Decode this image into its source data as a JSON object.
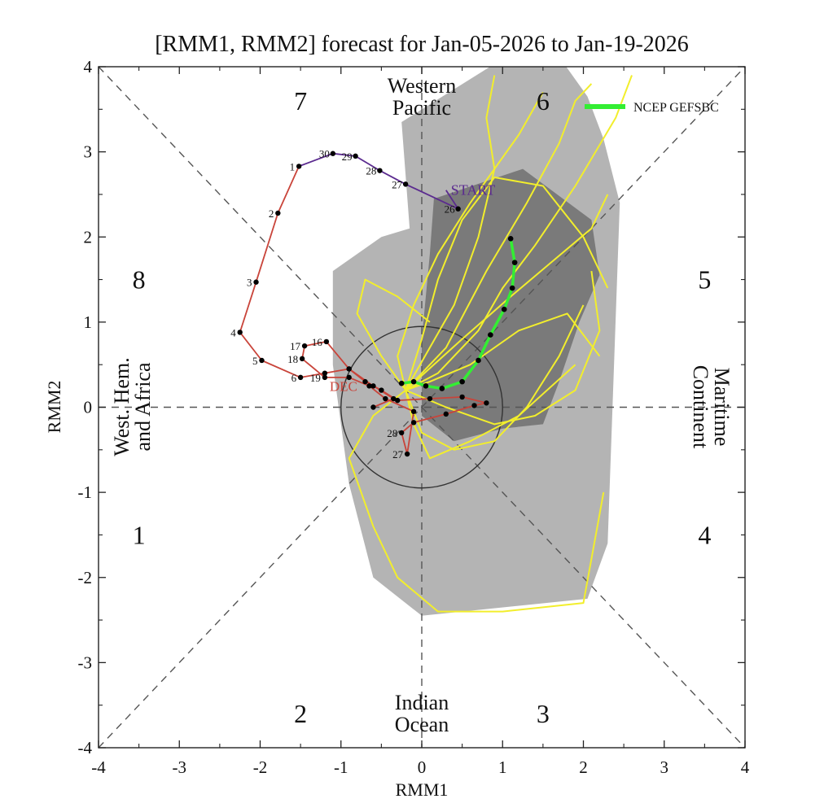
{
  "chart_data": {
    "type": "scatter",
    "title": "[RMM1, RMM2] forecast for Jan-05-2026 to Jan-19-2026",
    "xlabel": "RMM1",
    "ylabel": "RMM2",
    "xlim": [
      -4,
      4
    ],
    "ylim": [
      -4,
      4
    ],
    "x_ticks": [
      "-4",
      "-3",
      "-2",
      "-1",
      "0",
      "1",
      "2",
      "3",
      "4"
    ],
    "y_ticks": [
      "-4",
      "-3",
      "-2",
      "-1",
      "0",
      "1",
      "2",
      "3",
      "4"
    ],
    "phase_labels": [
      {
        "label": "1",
        "x": -3.5,
        "y": -1.5
      },
      {
        "label": "2",
        "x": -1.5,
        "y": -3.6
      },
      {
        "label": "3",
        "x": 1.5,
        "y": -3.6
      },
      {
        "label": "4",
        "x": 3.5,
        "y": -1.5
      },
      {
        "label": "5",
        "x": 3.5,
        "y": 1.5
      },
      {
        "label": "6",
        "x": 1.5,
        "y": 3.6
      },
      {
        "label": "7",
        "x": -1.5,
        "y": 3.6
      },
      {
        "label": "8",
        "x": -3.5,
        "y": 1.5
      }
    ],
    "regions": {
      "top": [
        "Western",
        "Pacific"
      ],
      "bottom": [
        "Indian",
        "Ocean"
      ],
      "left": [
        "West. Hem.",
        "and Africa"
      ],
      "right": [
        "Maritime",
        "Continent"
      ]
    },
    "legend": [
      {
        "name": "NCEP GEFSBC",
        "color": "#33ee33",
        "position": "top-right"
      }
    ],
    "grid": false,
    "observed_nov": {
      "color": "#5b2b8f",
      "points": [
        {
          "label": "START",
          "x": 0.3,
          "y": 2.55
        },
        {
          "label": "26",
          "x": 0.45,
          "y": 2.33
        },
        {
          "label": "27",
          "x": -0.2,
          "y": 2.62
        },
        {
          "label": "28",
          "x": -0.52,
          "y": 2.78
        },
        {
          "label": "29",
          "x": -0.82,
          "y": 2.95
        },
        {
          "label": "30",
          "x": -1.1,
          "y": 2.98
        }
      ]
    },
    "observed_dec": {
      "color": "#c9443a",
      "start_label": "DEC",
      "points": [
        {
          "label": "1",
          "x": -1.52,
          "y": 2.83
        },
        {
          "label": "2",
          "x": -1.78,
          "y": 2.28
        },
        {
          "label": "3",
          "x": -2.05,
          "y": 1.47
        },
        {
          "label": "4",
          "x": -2.25,
          "y": 0.88
        },
        {
          "label": "5",
          "x": -1.98,
          "y": 0.55
        },
        {
          "label": "6",
          "x": -1.5,
          "y": 0.35
        },
        {
          "label": "",
          "x": -1.2,
          "y": 0.4
        },
        {
          "label": "",
          "x": -0.9,
          "y": 0.45
        },
        {
          "label": "",
          "x": -0.7,
          "y": 0.3
        },
        {
          "label": "",
          "x": -0.5,
          "y": 0.2
        },
        {
          "label": "",
          "x": -0.3,
          "y": 0.08
        },
        {
          "label": "",
          "x": 0.1,
          "y": 0.1
        },
        {
          "label": "",
          "x": 0.5,
          "y": 0.12
        },
        {
          "label": "",
          "x": 0.8,
          "y": 0.05
        },
        {
          "label": "",
          "x": 0.65,
          "y": 0.02
        },
        {
          "label": "",
          "x": 0.3,
          "y": -0.08
        },
        {
          "label": "",
          "x": -0.1,
          "y": -0.18
        },
        {
          "label": "28",
          "x": -0.25,
          "y": -0.3
        },
        {
          "label": "27",
          "x": -0.18,
          "y": -0.55
        },
        {
          "label": "",
          "x": -0.1,
          "y": -0.05
        },
        {
          "label": "",
          "x": -0.45,
          "y": 0.1
        },
        {
          "label": "",
          "x": -0.65,
          "y": 0.25
        },
        {
          "label": "",
          "x": -0.9,
          "y": 0.35
        },
        {
          "label": "19",
          "x": -1.2,
          "y": 0.35
        },
        {
          "label": "18",
          "x": -1.48,
          "y": 0.57
        },
        {
          "label": "17",
          "x": -1.45,
          "y": 0.72
        },
        {
          "label": "16",
          "x": -1.18,
          "y": 0.77
        },
        {
          "label": "",
          "x": -0.9,
          "y": 0.45
        },
        {
          "label": "",
          "x": -0.6,
          "y": 0.25
        },
        {
          "label": "",
          "x": -0.35,
          "y": 0.1
        },
        {
          "label": "",
          "x": -0.6,
          "y": 0.0
        }
      ]
    },
    "forecast_mean": {
      "name": "NCEP GEFSBC",
      "color": "#33ee33",
      "points": [
        {
          "x": -0.25,
          "y": 0.28
        },
        {
          "x": -0.1,
          "y": 0.3
        },
        {
          "x": 0.05,
          "y": 0.25
        },
        {
          "x": 0.25,
          "y": 0.22
        },
        {
          "x": 0.5,
          "y": 0.3
        },
        {
          "x": 0.7,
          "y": 0.55
        },
        {
          "x": 0.85,
          "y": 0.85
        },
        {
          "x": 1.02,
          "y": 1.15
        },
        {
          "x": 1.12,
          "y": 1.4
        },
        {
          "x": 1.15,
          "y": 1.7
        },
        {
          "x": 1.1,
          "y": 1.98
        }
      ]
    },
    "ensemble_members": {
      "color": "#f2ee2c",
      "series": [
        [
          [
            -0.2,
            0.2
          ],
          [
            0.3,
            0.7
          ],
          [
            0.8,
            1.6
          ],
          [
            1.3,
            2.4
          ],
          [
            1.7,
            3.1
          ],
          [
            1.9,
            3.6
          ],
          [
            2.1,
            3.8
          ]
        ],
        [
          [
            -0.2,
            0.2
          ],
          [
            0.1,
            0.3
          ],
          [
            0.6,
            0.5
          ],
          [
            1.2,
            0.9
          ],
          [
            1.8,
            1.1
          ],
          [
            2.2,
            0.6
          ]
        ],
        [
          [
            -0.2,
            0.2
          ],
          [
            -0.1,
            -0.2
          ],
          [
            0.1,
            -0.6
          ],
          [
            0.6,
            -0.4
          ],
          [
            1.2,
            -0.1
          ],
          [
            1.9,
            0.5
          ]
        ],
        [
          [
            -0.2,
            0.2
          ],
          [
            -0.5,
            0.6
          ],
          [
            -0.8,
            1.1
          ],
          [
            -0.7,
            1.5
          ],
          [
            -0.3,
            1.3
          ],
          [
            0.1,
            1.0
          ]
        ],
        [
          [
            -0.2,
            0.2
          ],
          [
            -0.6,
            -0.1
          ],
          [
            -0.9,
            -0.6
          ],
          [
            -0.6,
            -1.4
          ],
          [
            -0.3,
            -2.0
          ],
          [
            0.2,
            -2.4
          ],
          [
            1.0,
            -2.4
          ],
          [
            2.0,
            -2.3
          ],
          [
            2.25,
            -1.0
          ]
        ],
        [
          [
            -0.2,
            0.2
          ],
          [
            0.0,
            0.8
          ],
          [
            0.2,
            1.5
          ],
          [
            0.5,
            2.2
          ],
          [
            0.9,
            2.7
          ],
          [
            1.5,
            2.6
          ],
          [
            2.0,
            2.0
          ],
          [
            2.3,
            1.4
          ]
        ],
        [
          [
            -0.2,
            0.2
          ],
          [
            0.4,
            1.2
          ],
          [
            0.7,
            2.0
          ],
          [
            0.9,
            2.8
          ],
          [
            0.8,
            3.4
          ],
          [
            0.9,
            3.9
          ]
        ],
        [
          [
            -0.2,
            0.2
          ],
          [
            0.5,
            0.8
          ],
          [
            1.1,
            1.3
          ],
          [
            1.6,
            1.7
          ],
          [
            2.1,
            2.1
          ],
          [
            2.3,
            2.5
          ]
        ],
        [
          [
            -0.2,
            0.2
          ],
          [
            0.3,
            0.0
          ],
          [
            0.9,
            -0.2
          ],
          [
            1.4,
            -0.1
          ],
          [
            1.9,
            0.2
          ],
          [
            2.2,
            0.9
          ],
          [
            2.1,
            1.6
          ]
        ],
        [
          [
            -0.2,
            0.2
          ],
          [
            -0.3,
            0.6
          ],
          [
            -0.1,
            1.2
          ],
          [
            0.2,
            1.8
          ],
          [
            0.6,
            2.4
          ],
          [
            1.2,
            3.2
          ],
          [
            1.5,
            3.7
          ]
        ],
        [
          [
            -0.2,
            0.2
          ],
          [
            0.2,
            0.4
          ],
          [
            0.7,
            0.9
          ],
          [
            1.0,
            1.4
          ],
          [
            1.4,
            1.9
          ],
          [
            1.9,
            2.6
          ],
          [
            2.4,
            3.4
          ],
          [
            2.6,
            3.9
          ]
        ],
        [
          [
            -0.2,
            0.2
          ],
          [
            0.0,
            -0.3
          ],
          [
            0.4,
            -0.5
          ],
          [
            0.9,
            -0.4
          ],
          [
            1.3,
            0.0
          ],
          [
            1.7,
            0.6
          ],
          [
            2.0,
            1.2
          ]
        ]
      ]
    },
    "ensemble_range_outer": {
      "color": "#b4b4b4",
      "polygon": [
        [
          -0.25,
          3.35
        ],
        [
          1.35,
          4.3
        ],
        [
          1.75,
          4.05
        ],
        [
          2.05,
          3.65
        ],
        [
          2.25,
          3.15
        ],
        [
          2.45,
          2.4
        ],
        [
          2.3,
          -1.6
        ],
        [
          2.05,
          -2.25
        ],
        [
          0.0,
          -2.45
        ],
        [
          -0.6,
          -2.0
        ],
        [
          -0.9,
          -0.9
        ],
        [
          -1.1,
          0.5
        ],
        [
          -1.1,
          1.6
        ],
        [
          -0.5,
          2.0
        ],
        [
          -0.15,
          2.1
        ]
      ]
    },
    "ensemble_range_inner": {
      "color": "#7a7a7a",
      "polygon": [
        [
          0.15,
          2.45
        ],
        [
          1.25,
          2.8
        ],
        [
          2.1,
          2.2
        ],
        [
          2.2,
          1.55
        ],
        [
          1.95,
          1.0
        ],
        [
          1.7,
          0.3
        ],
        [
          1.5,
          -0.2
        ],
        [
          1.0,
          -0.25
        ],
        [
          0.4,
          -0.4
        ],
        [
          0.0,
          -0.1
        ],
        [
          0.0,
          0.8
        ],
        [
          0.1,
          1.8
        ]
      ]
    }
  }
}
